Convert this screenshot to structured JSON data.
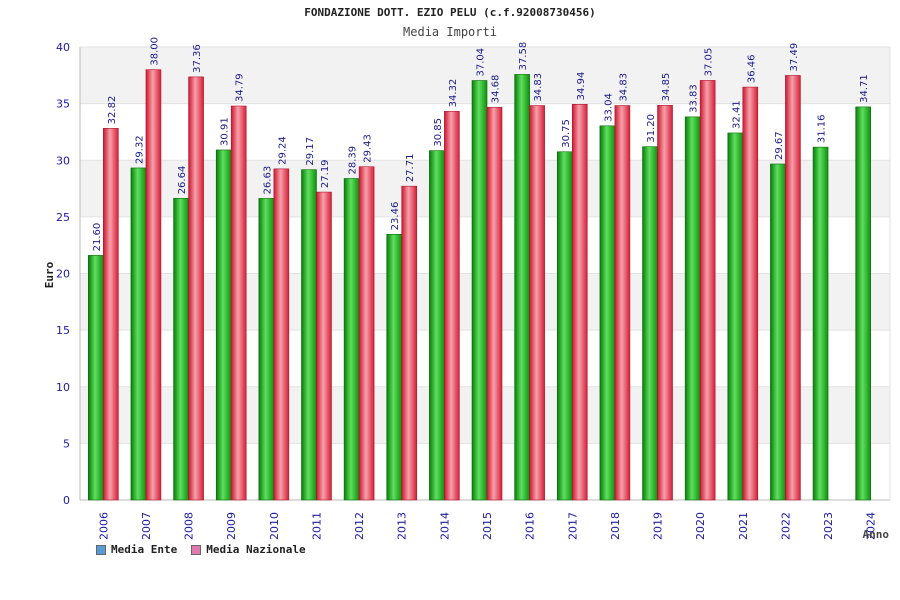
{
  "colors": {
    "ente": "#1faa1f",
    "nazionale": "#e8344a",
    "grid_band": "#f2f2f2",
    "axis_text": "#1a1aa6",
    "value_text": "#1a1a8c",
    "legend_ente": "#5b9bd5",
    "legend_nazionale": "#e07bb0"
  },
  "chart_data": {
    "type": "bar",
    "title": "FONDAZIONE DOTT. EZIO PELU (c.f.92008730456)",
    "subtitle": "Media Importi",
    "xlabel": "Anno",
    "ylabel": "Euro",
    "ylim": [
      0,
      40
    ],
    "yticks": [
      0,
      5,
      10,
      15,
      20,
      25,
      30,
      35,
      40
    ],
    "categories": [
      "2006",
      "2007",
      "2008",
      "2009",
      "2010",
      "2011",
      "2012",
      "2013",
      "2014",
      "2015",
      "2016",
      "2017",
      "2018",
      "2019",
      "2020",
      "2021",
      "2022",
      "2023",
      "2024"
    ],
    "series": [
      {
        "name": "Media Ente",
        "values": [
          21.6,
          29.32,
          26.64,
          30.91,
          26.63,
          29.17,
          28.39,
          23.46,
          30.85,
          37.04,
          37.58,
          30.75,
          33.04,
          31.2,
          33.83,
          32.41,
          29.67,
          31.16,
          34.71
        ],
        "labels": [
          "21.60",
          "29.32",
          "26.64",
          "30.91",
          "26.63",
          "29.17",
          "28.39",
          "23.46",
          "30.85",
          "37.04",
          "37.58",
          "30.75",
          "33.04",
          "31.20",
          "33.83",
          "32.41",
          "29.67",
          "31.16",
          "34.71"
        ]
      },
      {
        "name": "Media Nazionale",
        "values": [
          32.82,
          38.0,
          37.36,
          34.79,
          29.24,
          27.19,
          29.43,
          27.71,
          34.32,
          34.68,
          34.83,
          34.94,
          34.83,
          34.85,
          37.05,
          36.46,
          37.49,
          null,
          null
        ],
        "labels": [
          "32.82",
          "38.00",
          "37.36",
          "34.79",
          "29.24",
          "27.19",
          "29.43",
          "27.71",
          "34.32",
          "34.68",
          "34.83",
          "34.94",
          "34.83",
          "34.85",
          "37.05",
          "36.46",
          "37.49",
          null,
          null
        ]
      }
    ],
    "legend": [
      "Media Ente",
      "Media Nazionale"
    ],
    "legend_position": "bottom-left",
    "grid": true
  }
}
